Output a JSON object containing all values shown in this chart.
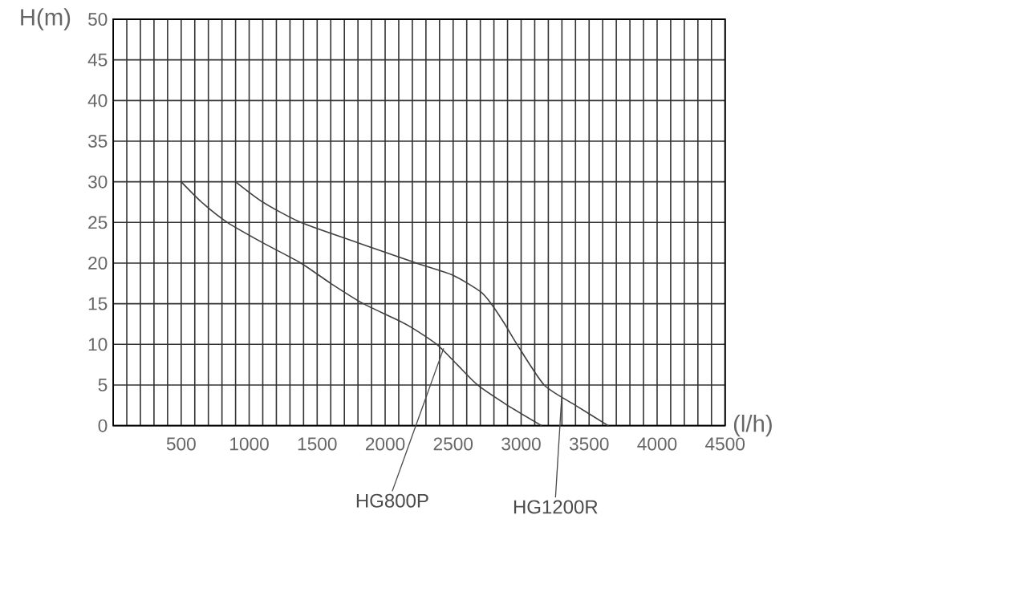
{
  "chart_data": {
    "type": "line",
    "xlabel": "(l/h)",
    "ylabel": "H(m)",
    "xlim": [
      0,
      4500
    ],
    "ylim": [
      0,
      50
    ],
    "xticks": [
      {
        "value": 100,
        "label": null
      },
      {
        "value": 200,
        "label": null
      },
      {
        "value": 300,
        "label": null
      },
      {
        "value": 400,
        "label": null
      },
      500,
      {
        "value": 600,
        "label": null
      },
      {
        "value": 700,
        "label": null
      },
      {
        "value": 800,
        "label": null
      },
      {
        "value": 900,
        "label": null
      },
      1000,
      {
        "value": 1100,
        "label": null
      },
      {
        "value": 1200,
        "label": null
      },
      {
        "value": 1300,
        "label": null
      },
      {
        "value": 1400,
        "label": null
      },
      1500,
      {
        "value": 1600,
        "label": null
      },
      {
        "value": 1700,
        "label": null
      },
      {
        "value": 1800,
        "label": null
      },
      {
        "value": 1900,
        "label": null
      },
      2000,
      {
        "value": 2100,
        "label": null
      },
      {
        "value": 2200,
        "label": null
      },
      {
        "value": 2300,
        "label": null
      },
      {
        "value": 2400,
        "label": null
      },
      2500,
      {
        "value": 2600,
        "label": null
      },
      {
        "value": 2700,
        "label": null
      },
      {
        "value": 2800,
        "label": null
      },
      {
        "value": 2900,
        "label": null
      },
      3000,
      {
        "value": 3100,
        "label": null
      },
      {
        "value": 3200,
        "label": null
      },
      {
        "value": 3300,
        "label": null
      },
      {
        "value": 3400,
        "label": null
      },
      3500,
      {
        "value": 3600,
        "label": null
      },
      {
        "value": 3700,
        "label": null
      },
      {
        "value": 3800,
        "label": null
      },
      {
        "value": 3900,
        "label": null
      },
      4000,
      {
        "value": 4100,
        "label": null
      },
      {
        "value": 4200,
        "label": null
      },
      {
        "value": 4300,
        "label": null
      },
      {
        "value": 4400,
        "label": null
      },
      4500
    ],
    "yticks": [
      0,
      5,
      10,
      15,
      20,
      25,
      30,
      35,
      40,
      45,
      50
    ],
    "grid": true,
    "marker": "none",
    "line_style": "solid",
    "series": [
      {
        "color": "#404040",
        "x": [
          500,
          650,
          840,
          1100,
          1380,
          1600,
          1840,
          2150,
          2380,
          2530,
          2680,
          2900,
          3150
        ],
        "values": [
          30,
          27.5,
          25,
          22.5,
          20,
          17.5,
          15,
          12.5,
          10,
          7.5,
          5,
          2.5,
          0
        ]
      },
      {
        "color": "#404040",
        "x": [
          900,
          1100,
          1380,
          1800,
          2230,
          2500,
          2700,
          2780,
          2880,
          2970,
          3170,
          3400,
          3640
        ],
        "values": [
          30,
          27.5,
          25,
          22.5,
          20,
          18.5,
          16.5,
          15,
          12.5,
          10,
          5,
          2.5,
          0
        ]
      }
    ],
    "annotations": [
      {
        "text": "HG800P",
        "x": 2430,
        "y": 9.5
      },
      {
        "text": "HG1200R",
        "x": 3300,
        "y": 4
      }
    ]
  }
}
